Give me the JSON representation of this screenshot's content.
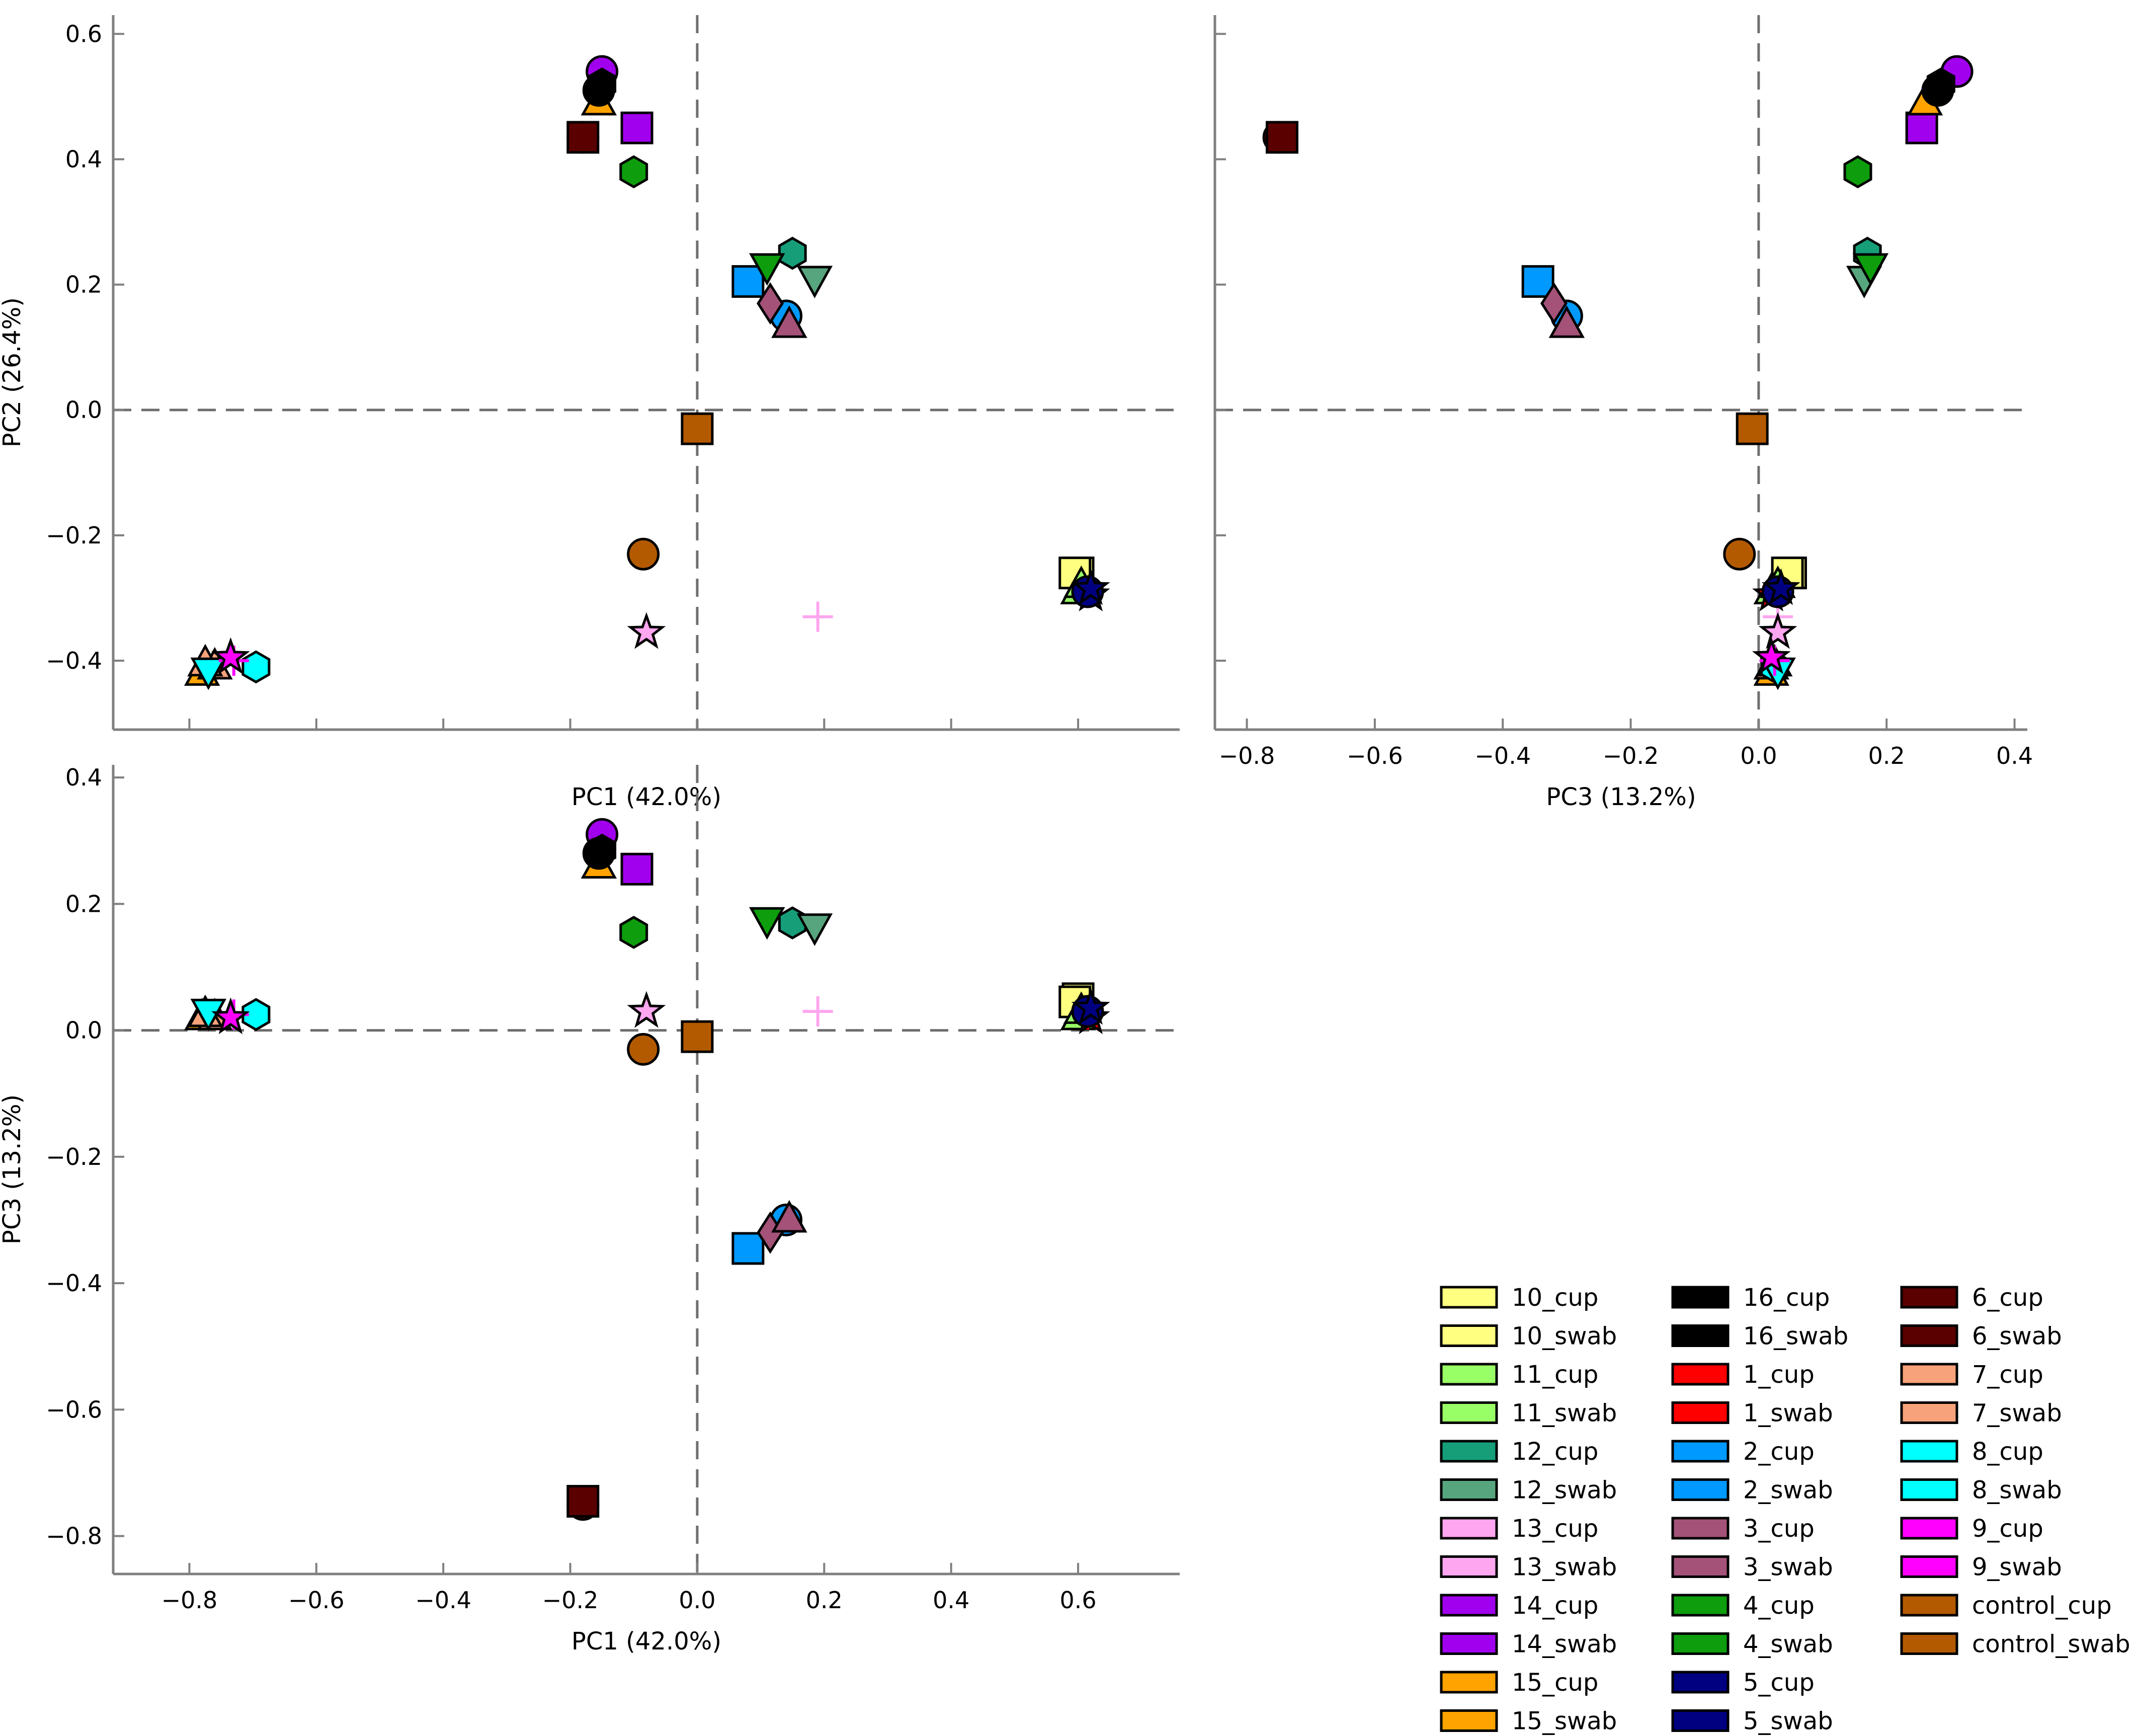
{
  "chart_data": [
    {
      "type": "scatter",
      "id": "pc1_pc2",
      "xlabel": "PC1 (42.0%)",
      "ylabel": "PC2 (26.4%)",
      "xlim": [
        -0.92,
        0.76
      ],
      "ylim": [
        -0.51,
        0.63
      ],
      "xticks": [
        -0.8,
        -0.6,
        -0.4,
        -0.2,
        0.0,
        0.2,
        0.4,
        0.6
      ],
      "yticks": [
        -0.4,
        -0.2,
        0.0,
        0.2,
        0.4,
        0.6
      ],
      "show_x_tick_labels": false,
      "show_y_tick_labels": true
    },
    {
      "type": "scatter",
      "id": "pc3_pc2",
      "xlabel": "PC3 (13.2%)",
      "ylabel": "",
      "xlim": [
        -0.85,
        0.42
      ],
      "ylim": [
        -0.51,
        0.63
      ],
      "xticks": [
        -0.8,
        -0.6,
        -0.4,
        -0.2,
        0.0,
        0.2,
        0.4
      ],
      "yticks": [
        -0.4,
        -0.2,
        0.0,
        0.2,
        0.4,
        0.6
      ],
      "show_x_tick_labels": true,
      "show_y_tick_labels": false
    },
    {
      "type": "scatter",
      "id": "pc1_pc3",
      "xlabel": "PC1 (42.0%)",
      "ylabel": "PC3 (13.2%)",
      "xlim": [
        -0.92,
        0.76
      ],
      "ylim": [
        -0.86,
        0.42
      ],
      "xticks": [
        -0.8,
        -0.6,
        -0.4,
        -0.2,
        0.0,
        0.2,
        0.4,
        0.6
      ],
      "yticks": [
        -0.8,
        -0.6,
        -0.4,
        -0.2,
        0.0,
        0.2,
        0.4
      ],
      "show_x_tick_labels": true,
      "show_y_tick_labels": true
    }
  ],
  "points": [
    {
      "name": "10_cup",
      "pc1": 0.6,
      "pc2": -0.26,
      "pc3": 0.05
    },
    {
      "name": "10_swab",
      "pc1": 0.595,
      "pc2": -0.26,
      "pc3": 0.045
    },
    {
      "name": "11_cup",
      "pc1": 0.6,
      "pc2": -0.29,
      "pc3": 0.02
    },
    {
      "name": "11_swab",
      "pc1": 0.605,
      "pc2": -0.28,
      "pc3": 0.03
    },
    {
      "name": "12_cup",
      "pc1": 0.15,
      "pc2": 0.25,
      "pc3": 0.17
    },
    {
      "name": "12_swab",
      "pc1": 0.185,
      "pc2": 0.21,
      "pc3": 0.165
    },
    {
      "name": "13_cup",
      "pc1": 0.19,
      "pc2": -0.33,
      "pc3": 0.03
    },
    {
      "name": "13_swab",
      "pc1": -0.08,
      "pc2": -0.355,
      "pc3": 0.03
    },
    {
      "name": "14_cup",
      "pc1": -0.15,
      "pc2": 0.54,
      "pc3": 0.31
    },
    {
      "name": "14_swab",
      "pc1": -0.095,
      "pc2": 0.45,
      "pc3": 0.255
    },
    {
      "name": "15_cup",
      "pc1": -0.155,
      "pc2": 0.49,
      "pc3": 0.26
    },
    {
      "name": "15_swab",
      "pc1": -0.78,
      "pc2": -0.42,
      "pc3": 0.02
    },
    {
      "name": "16_cup",
      "pc1": -0.155,
      "pc2": 0.51,
      "pc3": 0.28
    },
    {
      "name": "16_swab",
      "pc1": -0.15,
      "pc2": 0.52,
      "pc3": 0.285
    },
    {
      "name": "1_cup",
      "pc1": 0.615,
      "pc2": -0.29,
      "pc3": 0.025
    },
    {
      "name": "1_swab",
      "pc1": 0.62,
      "pc2": -0.295,
      "pc3": 0.02
    },
    {
      "name": "2_cup",
      "pc1": 0.08,
      "pc2": 0.205,
      "pc3": -0.345
    },
    {
      "name": "2_swab",
      "pc1": 0.14,
      "pc2": 0.15,
      "pc3": -0.3
    },
    {
      "name": "3_cup",
      "pc1": 0.115,
      "pc2": 0.17,
      "pc3": -0.32
    },
    {
      "name": "3_swab",
      "pc1": 0.145,
      "pc2": 0.135,
      "pc3": -0.3
    },
    {
      "name": "4_cup",
      "pc1": -0.1,
      "pc2": 0.38,
      "pc3": 0.155
    },
    {
      "name": "4_swab",
      "pc1": 0.11,
      "pc2": 0.23,
      "pc3": 0.175
    },
    {
      "name": "5_cup",
      "pc1": 0.615,
      "pc2": -0.29,
      "pc3": 0.03
    },
    {
      "name": "5_swab",
      "pc1": 0.62,
      "pc2": -0.285,
      "pc3": 0.035
    },
    {
      "name": "6_cup",
      "pc1": -0.18,
      "pc2": 0.435,
      "pc3": -0.75
    },
    {
      "name": "6_swab",
      "pc1": -0.18,
      "pc2": 0.435,
      "pc3": -0.745
    },
    {
      "name": "7_cup",
      "pc1": -0.76,
      "pc2": -0.41,
      "pc3": 0.02
    },
    {
      "name": "7_swab",
      "pc1": -0.775,
      "pc2": -0.405,
      "pc3": 0.025
    },
    {
      "name": "8_cup",
      "pc1": -0.695,
      "pc2": -0.41,
      "pc3": 0.025
    },
    {
      "name": "8_swab",
      "pc1": -0.77,
      "pc2": -0.415,
      "pc3": 0.03
    },
    {
      "name": "9_cup",
      "pc1": -0.73,
      "pc2": -0.4,
      "pc3": 0.025
    },
    {
      "name": "9_swab",
      "pc1": -0.735,
      "pc2": -0.395,
      "pc3": 0.02
    },
    {
      "name": "control_cup",
      "pc1": -0.085,
      "pc2": -0.23,
      "pc3": -0.03
    },
    {
      "name": "control_swab",
      "pc1": 0.0,
      "pc2": -0.03,
      "pc3": -0.01
    }
  ],
  "legend": [
    {
      "label": "10_cup",
      "color": "#ffff80",
      "shape": "square"
    },
    {
      "label": "10_swab",
      "color": "#ffff80",
      "shape": "square"
    },
    {
      "label": "11_cup",
      "color": "#99ff66",
      "shape": "triangle-up"
    },
    {
      "label": "11_swab",
      "color": "#99ff66",
      "shape": "triangle-up"
    },
    {
      "label": "12_cup",
      "color": "#169e79",
      "shape": "hexagon"
    },
    {
      "label": "12_swab",
      "color": "#57a57e",
      "shape": "triangle-down"
    },
    {
      "label": "13_cup",
      "color": "#ffa6f0",
      "shape": "plus"
    },
    {
      "label": "13_swab",
      "color": "#ffa6f0",
      "shape": "star"
    },
    {
      "label": "14_cup",
      "color": "#a100ee",
      "shape": "circle"
    },
    {
      "label": "14_swab",
      "color": "#a100ee",
      "shape": "square"
    },
    {
      "label": "15_cup",
      "color": "#ffa300",
      "shape": "triangle-up"
    },
    {
      "label": "15_swab",
      "color": "#ffa300",
      "shape": "triangle-up"
    },
    {
      "label": "16_cup",
      "color": "#000000",
      "shape": "circle"
    },
    {
      "label": "16_swab",
      "color": "#000000",
      "shape": "hexagon"
    },
    {
      "label": "1_cup",
      "color": "#ff0000",
      "shape": "plus"
    },
    {
      "label": "1_swab",
      "color": "#ff0000",
      "shape": "star"
    },
    {
      "label": "2_cup",
      "color": "#0099ff",
      "shape": "square"
    },
    {
      "label": "2_swab",
      "color": "#0099ff",
      "shape": "circle"
    },
    {
      "label": "3_cup",
      "color": "#a45278",
      "shape": "diamond"
    },
    {
      "label": "3_swab",
      "color": "#a45278",
      "shape": "triangle-up"
    },
    {
      "label": "4_cup",
      "color": "#0d9d0d",
      "shape": "hexagon"
    },
    {
      "label": "4_swab",
      "color": "#0d9d0d",
      "shape": "triangle-down"
    },
    {
      "label": "5_cup",
      "color": "#000080",
      "shape": "circle"
    },
    {
      "label": "5_swab",
      "color": "#000080",
      "shape": "star"
    },
    {
      "label": "6_cup",
      "color": "#5a0000",
      "shape": "circle"
    },
    {
      "label": "6_swab",
      "color": "#5a0000",
      "shape": "square"
    },
    {
      "label": "7_cup",
      "color": "#f7a27a",
      "shape": "triangle-up"
    },
    {
      "label": "7_swab",
      "color": "#f7a27a",
      "shape": "triangle-up"
    },
    {
      "label": "8_cup",
      "color": "#00ffff",
      "shape": "hexagon"
    },
    {
      "label": "8_swab",
      "color": "#00ffff",
      "shape": "triangle-down"
    },
    {
      "label": "9_cup",
      "color": "#ff00ff",
      "shape": "plus"
    },
    {
      "label": "9_swab",
      "color": "#ff00ff",
      "shape": "star"
    },
    {
      "label": "control_cup",
      "color": "#b35a00",
      "shape": "circle"
    },
    {
      "label": "control_swab",
      "color": "#b35a00",
      "shape": "square"
    }
  ]
}
